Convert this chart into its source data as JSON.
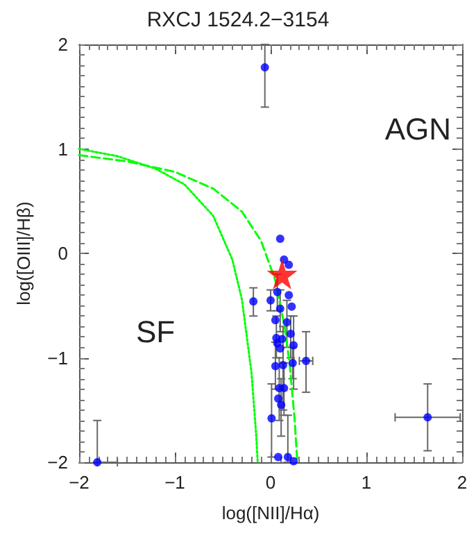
{
  "chart_data": {
    "type": "scatter",
    "title": "RXCJ 1524.2−3154",
    "xlabel": "log([NII]/Hα)",
    "ylabel": "log([OIII]/Hβ)",
    "annotations": [
      "AGN",
      "SF"
    ],
    "xlim": [
      -2,
      2
    ],
    "xticks": [
      -2,
      -1,
      0,
      1,
      2
    ],
    "ylim": [
      -2,
      2
    ],
    "yticks": [
      -2,
      -1,
      0,
      1,
      2
    ],
    "grid": false,
    "series": [
      {
        "type": "line",
        "color": "#00ff00",
        "line_style": "dotted",
        "marker": "none",
        "x": [
          -2,
          -1.6,
          -1.2,
          -0.9,
          -0.6,
          -0.4,
          -0.3,
          -0.2,
          -0.15,
          -0.135
        ],
        "values": [
          1.0,
          0.93,
          0.81,
          0.66,
          0.36,
          -0.06,
          -0.44,
          -1.14,
          -1.75,
          -2.0
        ]
      },
      {
        "type": "line",
        "color": "#00ff00",
        "line_style": "dashed",
        "marker": "none",
        "x": [
          -2,
          -1.5,
          -1,
          -0.6,
          -0.3,
          -0.1,
          0.05,
          0.15,
          0.2,
          0.25,
          0.279
        ],
        "values": [
          0.94,
          0.88,
          0.78,
          0.62,
          0.4,
          0.12,
          -0.26,
          -0.72,
          -1.07,
          -1.58,
          -2.0
        ]
      },
      {
        "color": "#0000ff",
        "marker": "circle",
        "x": [
          -0.06,
          -1.81,
          1.64,
          0.37,
          -0.18,
          0.01,
          0.08,
          0.18,
          0.24,
          0.05,
          0.13,
          0.23,
          0.09,
          0.14,
          0.08,
          0.11,
          0.06,
          0.12,
          0.21,
          0.1,
          0.1,
          0.19,
          0.14,
          0.07,
          0.19,
          0.0,
          0.22,
          0.1,
          0.05,
          0.17,
          0.24,
          0.07
        ],
        "values": [
          1.78,
          -2.0,
          -1.57,
          -1.03,
          -0.46,
          -1.58,
          -1.95,
          -1.95,
          -1.99,
          -1.08,
          -1.07,
          -1.05,
          -1.29,
          -1.29,
          -1.39,
          -1.45,
          -0.81,
          -0.82,
          -0.77,
          -0.91,
          0.14,
          -0.11,
          -0.06,
          -0.37,
          -0.4,
          -0.45,
          -0.51,
          -0.53,
          -0.64,
          -0.66,
          -0.88,
          -0.86
        ],
        "errors": [
          [
            1.4,
            2.0
          ],
          [
            -2.0,
            -1.6
          ],
          [
            -1.89,
            -1.25
          ],
          [
            -1.33,
            -0.75
          ],
          [
            -0.6,
            -0.33
          ],
          [
            -1.95,
            -1.25
          ],
          null,
          [
            -2.0,
            -1.55
          ],
          null,
          [
            -1.3,
            -0.85
          ],
          [
            -1.5,
            -0.7
          ],
          [
            -1.2,
            -0.9
          ],
          [
            -1.6,
            -1.0
          ],
          [
            -1.55,
            -1.05
          ],
          null,
          [
            -1.75,
            -1.2
          ],
          [
            -1.0,
            -0.6
          ],
          null,
          [
            -1.0,
            -0.6
          ],
          null,
          null,
          null,
          null,
          [
            -0.55,
            -0.2
          ],
          null,
          [
            -0.55,
            -0.35
          ],
          null,
          [
            -0.75,
            -0.35
          ],
          null,
          [
            -0.9,
            -0.45
          ],
          [
            -1.3,
            -0.6
          ],
          null
        ],
        "xerrors": [
          null,
          [
            -1.81,
            -1.6
          ],
          [
            1.3,
            1.98
          ],
          [
            0.3,
            0.44
          ],
          null,
          null,
          null,
          null,
          null,
          null,
          null,
          null,
          null,
          null,
          null,
          null,
          null,
          null,
          null,
          null,
          null,
          null,
          null,
          null,
          null,
          null,
          null,
          null,
          null,
          null,
          null,
          null
        ]
      },
      {
        "color": "#ff0000",
        "marker": "star",
        "x": [
          0.12
        ],
        "values": [
          -0.2
        ]
      }
    ]
  }
}
